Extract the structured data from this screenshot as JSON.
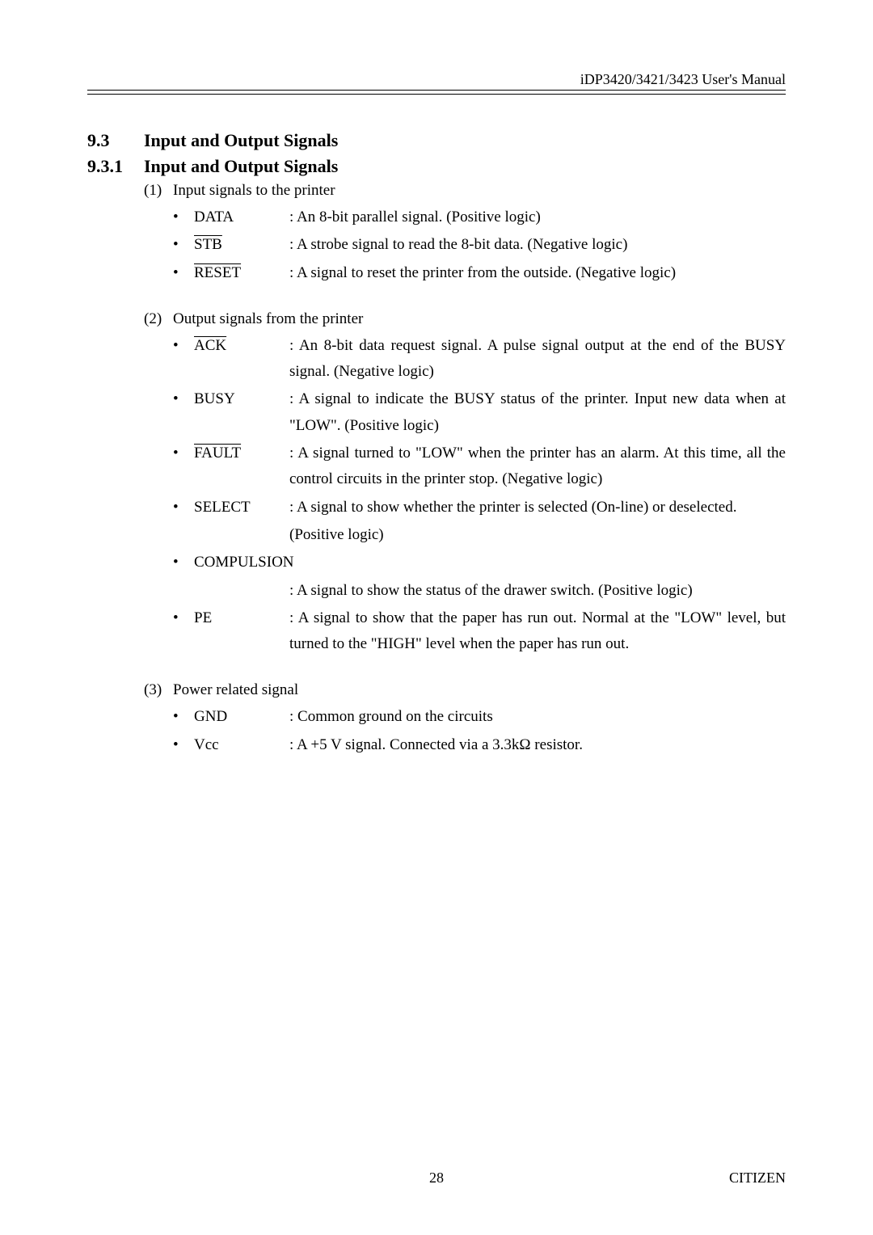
{
  "header": {
    "text": "iDP3420/3421/3423 User's Manual"
  },
  "section": {
    "num1": "9.3",
    "title1": "Input and Output Signals",
    "num2": "9.3.1",
    "title2": "Input and Output Signals"
  },
  "groups": [
    {
      "num": "(1)",
      "title": "Input signals to the printer",
      "items": [
        {
          "name": "DATA",
          "overline": false,
          "desc": ": An 8-bit parallel signal. (Positive logic)"
        },
        {
          "name": "STB",
          "overline": true,
          "desc": ": A strobe signal to read the 8-bit data. (Negative logic)"
        },
        {
          "name": "RESET",
          "overline": true,
          "desc": ": A signal to reset the printer from the outside. (Negative logic)"
        }
      ]
    },
    {
      "num": "(2)",
      "title": "Output signals from the printer",
      "items": [
        {
          "name": "ACK",
          "overline": true,
          "desc": ": An 8-bit data request signal.   A pulse signal output at the end of the BUSY signal. (Negative logic)"
        },
        {
          "name": "BUSY",
          "overline": false,
          "desc": ": A signal to indicate the BUSY status of the printer.   Input new data when at \"LOW\". (Positive logic)"
        },
        {
          "name": "FAULT",
          "overline": true,
          "desc": ": A signal turned to \"LOW\" when the printer has an alarm.   At this time, all the control circuits in the printer stop. (Negative logic)"
        },
        {
          "name": "SELECT",
          "overline": false,
          "desc": ": A signal to show whether the printer is selected (On-line) or deselected."
        },
        {
          "name": "",
          "overline": false,
          "desc": "  (Positive logic)",
          "cont": true
        },
        {
          "name": "COMPULSION",
          "overline": false,
          "desc": ""
        },
        {
          "name": "",
          "overline": false,
          "desc": ": A signal to show the status of the drawer switch. (Positive logic)",
          "cont": true
        },
        {
          "name": "PE",
          "overline": false,
          "desc": ": A signal to show that the paper has run out.   Normal at the \"LOW\" level, but turned to the \"HIGH\" level when the paper has run out."
        }
      ]
    },
    {
      "num": "(3)",
      "title": "Power related signal",
      "items": [
        {
          "name": "GND",
          "overline": false,
          "desc": ": Common ground on the circuits"
        },
        {
          "name": "Vcc",
          "overline": false,
          "desc": ": A +5 V signal.    Connected via a 3.3kΩ resistor."
        }
      ]
    }
  ],
  "footer": {
    "page": "28",
    "brand": "CITIZEN"
  }
}
